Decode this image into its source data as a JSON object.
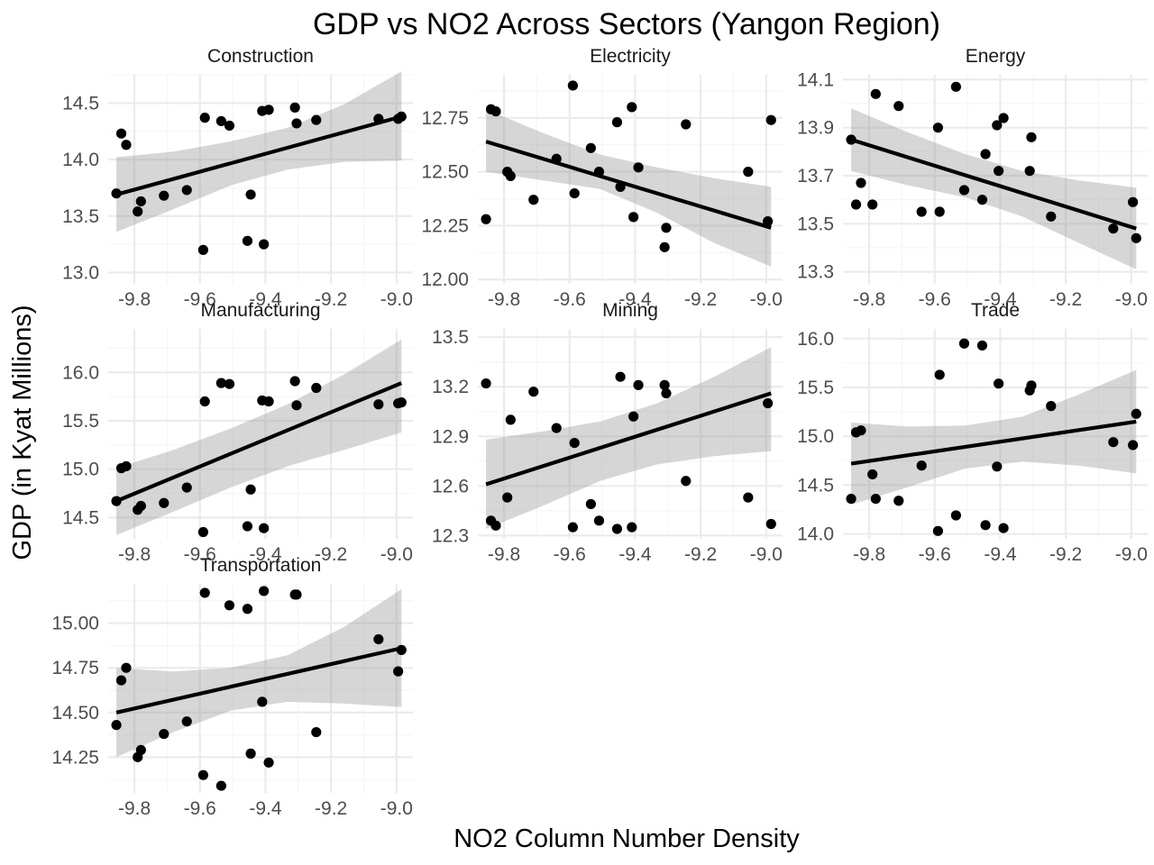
{
  "colors": {
    "point": "#000000",
    "line": "#000000",
    "band": "#999999",
    "grid": "#ebebeb",
    "text": "#4d4d4d"
  },
  "chart_data": {
    "type": "scatter",
    "title": "GDP vs NO2 Across Sectors (Yangon Region)",
    "xlabel": "NO2 Column Number Density",
    "ylabel": "GDP (in Kyat Millions)",
    "xlim": [
      -9.88,
      -8.95
    ],
    "xticks": [
      -9.8,
      -9.6,
      -9.4,
      -9.2,
      -9.0
    ],
    "xtick_labels": [
      "-9.8",
      "-9.6",
      "-9.4",
      "-9.2",
      "-9.0"
    ],
    "x": [
      -9.855,
      -9.84,
      -9.825,
      -9.79,
      -9.78,
      -9.71,
      -9.64,
      -9.59,
      -9.585,
      -9.535,
      -9.51,
      -9.455,
      -9.445,
      -9.41,
      -9.405,
      -9.39,
      -9.31,
      -9.305,
      -9.245,
      -9.055,
      -8.995,
      -8.985
    ],
    "panels": [
      {
        "title": "Construction",
        "ylim": [
          12.9,
          14.75
        ],
        "yticks": [
          13.0,
          13.5,
          14.0,
          14.5
        ],
        "ytick_labels": [
          "13.0",
          "13.5",
          "14.0",
          "14.5"
        ],
        "y": [
          13.7,
          14.23,
          14.13,
          13.54,
          13.63,
          13.68,
          13.73,
          13.2,
          14.37,
          14.34,
          14.3,
          13.28,
          13.69,
          14.43,
          13.25,
          14.44,
          14.46,
          14.32,
          14.35,
          14.36,
          14.36,
          14.38
        ],
        "fit": {
          "x": [
            -9.855,
            -8.985
          ],
          "y": [
            13.69,
            14.38
          ]
        },
        "band_upper": [
          14.02,
          14.07,
          14.16,
          14.28,
          14.49,
          14.78
        ],
        "band_lower": [
          13.36,
          13.56,
          13.77,
          13.91,
          13.98,
          13.99
        ]
      },
      {
        "title": "Electricity",
        "ylim": [
          11.98,
          12.95
        ],
        "yticks": [
          12.0,
          12.25,
          12.5,
          12.75
        ],
        "ytick_labels": [
          "12.00",
          "12.25",
          "12.50",
          "12.75"
        ],
        "y": [
          12.28,
          12.79,
          12.78,
          12.5,
          12.48,
          12.37,
          12.56,
          12.9,
          12.4,
          12.61,
          12.5,
          12.73,
          12.43,
          12.8,
          12.29,
          12.52,
          12.15,
          12.24,
          12.72,
          12.5,
          12.27,
          12.74
        ],
        "fit": {
          "x": [
            -9.855,
            -8.985
          ],
          "y": [
            12.64,
            12.24
          ]
        },
        "band_upper": [
          12.79,
          12.68,
          12.58,
          12.52,
          12.47,
          12.43
        ],
        "band_lower": [
          12.5,
          12.46,
          12.42,
          12.31,
          12.17,
          12.06
        ]
      },
      {
        "title": "Energy",
        "ylim": [
          13.25,
          14.12
        ],
        "yticks": [
          13.3,
          13.5,
          13.7,
          13.9,
          14.1
        ],
        "ytick_labels": [
          "13.3",
          "13.5",
          "13.7",
          "13.9",
          "14.1"
        ],
        "y": [
          13.85,
          13.58,
          13.67,
          13.58,
          14.04,
          13.99,
          13.55,
          13.9,
          13.55,
          14.07,
          13.64,
          13.6,
          13.79,
          13.91,
          13.72,
          13.94,
          13.72,
          13.86,
          13.53,
          13.48,
          13.59,
          13.44
        ],
        "fit": {
          "x": [
            -9.855,
            -8.985
          ],
          "y": [
            13.85,
            13.48
          ]
        },
        "band_upper": [
          13.98,
          13.88,
          13.79,
          13.72,
          13.68,
          13.65
        ],
        "band_lower": [
          13.72,
          13.66,
          13.61,
          13.53,
          13.42,
          13.31
        ]
      },
      {
        "title": "Manufacturing",
        "ylim": [
          14.28,
          16.45
        ],
        "yticks": [
          14.5,
          15.0,
          15.5,
          16.0
        ],
        "ytick_labels": [
          "14.5",
          "15.0",
          "15.5",
          "16.0"
        ],
        "y": [
          14.67,
          15.01,
          15.03,
          14.58,
          14.62,
          14.65,
          14.81,
          14.35,
          15.7,
          15.89,
          15.88,
          14.41,
          14.79,
          15.71,
          14.39,
          15.7,
          15.91,
          15.66,
          15.84,
          15.67,
          15.68,
          15.69
        ],
        "fit": {
          "x": [
            -9.855,
            -8.985
          ],
          "y": [
            14.67,
            15.89
          ]
        },
        "band_upper": [
          15.01,
          15.2,
          15.42,
          15.67,
          15.98,
          16.34
        ],
        "band_lower": [
          14.32,
          14.56,
          14.81,
          15.03,
          15.2,
          15.38
        ]
      },
      {
        "title": "Mining",
        "ylim": [
          12.28,
          13.55
        ],
        "yticks": [
          12.3,
          12.6,
          12.9,
          13.2,
          13.5
        ],
        "ytick_labels": [
          "12.3",
          "12.6",
          "12.9",
          "13.2",
          "13.5"
        ],
        "y": [
          13.22,
          12.39,
          12.36,
          12.53,
          13.0,
          13.17,
          12.95,
          12.35,
          12.86,
          12.49,
          12.39,
          12.34,
          13.26,
          12.35,
          13.02,
          13.21,
          13.21,
          13.16,
          12.63,
          12.53,
          13.1,
          12.37
        ],
        "fit": {
          "x": [
            -9.855,
            -8.985
          ],
          "y": [
            12.61,
            13.16
          ]
        },
        "band_upper": [
          12.88,
          12.93,
          12.99,
          13.1,
          13.26,
          13.44
        ],
        "band_lower": [
          12.34,
          12.48,
          12.63,
          12.73,
          12.78,
          12.81
        ]
      },
      {
        "title": "Trade",
        "ylim": [
          13.95,
          16.1
        ],
        "yticks": [
          14.0,
          14.5,
          15.0,
          15.5,
          16.0
        ],
        "ytick_labels": [
          "14.0",
          "14.5",
          "15.0",
          "15.5",
          "16.0"
        ],
        "y": [
          14.36,
          15.04,
          15.06,
          14.61,
          14.36,
          14.34,
          14.7,
          14.03,
          15.63,
          14.19,
          15.95,
          15.93,
          14.09,
          14.69,
          15.54,
          14.06,
          15.47,
          15.52,
          15.31,
          14.94,
          14.91,
          15.23
        ],
        "fit": {
          "x": [
            -9.855,
            -8.985
          ],
          "y": [
            14.72,
            15.15
          ]
        },
        "band_upper": [
          15.14,
          15.1,
          15.11,
          15.2,
          15.43,
          15.68
        ],
        "band_lower": [
          14.3,
          14.48,
          14.67,
          14.74,
          14.7,
          14.62
        ]
      },
      {
        "title": "Transportation",
        "ylim": [
          14.05,
          15.22
        ],
        "yticks": [
          14.25,
          14.5,
          14.75,
          15.0
        ],
        "ytick_labels": [
          "14.25",
          "14.50",
          "14.75",
          "15.00"
        ],
        "y": [
          14.43,
          14.68,
          14.75,
          14.25,
          14.29,
          14.38,
          14.45,
          14.15,
          15.17,
          14.09,
          15.1,
          15.08,
          14.27,
          14.56,
          15.18,
          14.22,
          15.16,
          15.16,
          14.39,
          14.91,
          14.73,
          14.85
        ],
        "fit": {
          "x": [
            -9.855,
            -8.985
          ],
          "y": [
            14.5,
            14.86
          ]
        },
        "band_upper": [
          14.75,
          14.73,
          14.75,
          14.82,
          14.98,
          15.19
        ],
        "band_lower": [
          14.25,
          14.39,
          14.51,
          14.56,
          14.55,
          14.53
        ]
      }
    ]
  }
}
